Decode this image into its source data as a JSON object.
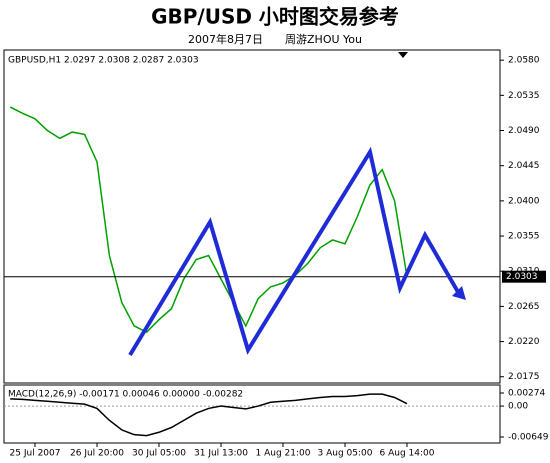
{
  "chart_data": [
    {
      "type": "line",
      "title": "GBP/USD 小时图交易参考",
      "subtitle": "2007年8月7日　　周游ZHOU You",
      "legend_text": "GBPUSD,H1 2.0297 2.0308 2.0287 2.0303",
      "categories": [
        null,
        null,
        "25 Jul 2007",
        null,
        null,
        null,
        null,
        "26 Jul 20:00",
        null,
        null,
        null,
        null,
        "30 Jul 05:00",
        null,
        null,
        null,
        null,
        "31 Jul 13:00",
        null,
        null,
        null,
        null,
        "1 Aug 21:00",
        null,
        null,
        null,
        null,
        "3 Aug 05:00",
        null,
        null,
        null,
        null,
        "6 Aug 14:00",
        null,
        null,
        null,
        null,
        null,
        null,
        null
      ],
      "series": [
        {
          "name": "GBPUSD",
          "color": "#00a000",
          "values": [
            2.052,
            2.0512,
            2.0505,
            2.049,
            2.048,
            2.0488,
            2.0485,
            2.045,
            2.033,
            2.027,
            2.024,
            2.0232,
            2.0248,
            2.0262,
            2.03,
            2.0325,
            2.033,
            2.03,
            2.027,
            2.024,
            2.0275,
            2.029,
            2.0295,
            2.0305,
            2.032,
            2.034,
            2.035,
            2.0345,
            2.038,
            2.042,
            2.044,
            2.04,
            2.0303,
            null,
            null,
            null,
            null,
            null,
            null,
            null
          ]
        }
      ],
      "ylim": [
        2.0167,
        2.0593
      ],
      "yticks": [
        {
          "value": 2.058,
          "label": "2.0580"
        },
        {
          "value": 2.0535,
          "label": "2.0535"
        },
        {
          "value": 2.049,
          "label": "2.0490"
        },
        {
          "value": 2.0445,
          "label": "2.0445"
        },
        {
          "value": 2.04,
          "label": "2.0400"
        },
        {
          "value": 2.0355,
          "label": "2.0355"
        },
        {
          "value": 2.031,
          "label": "2.0310"
        },
        {
          "value": 2.0265,
          "label": "2.0265"
        },
        {
          "value": 2.022,
          "label": "2.0220"
        },
        {
          "value": 2.0175,
          "label": "2.0175"
        }
      ],
      "last_price": {
        "value": 2.0303,
        "label": "2.0303"
      }
    },
    {
      "type": "line",
      "legend_text": "MACD(12,26,9) -0.00171 0.00046 0.00000 -0.00282",
      "series": [
        {
          "name": "MACD",
          "color": "#000000",
          "values": [
            0.0015,
            0.0014,
            0.0012,
            0.001,
            0.0008,
            0.0006,
            0.0004,
            -0.0005,
            -0.003,
            -0.005,
            -0.006,
            -0.0062,
            -0.0055,
            -0.0045,
            -0.003,
            -0.0015,
            -0.0005,
            0.0,
            -0.0003,
            -0.0006,
            0.0,
            0.0008,
            0.001,
            0.0012,
            0.0015,
            0.0018,
            0.002,
            0.002,
            0.0022,
            0.0025,
            0.0025,
            0.0018,
            0.0005,
            null,
            null,
            null,
            null,
            null,
            null,
            null
          ]
        }
      ],
      "ylim": [
        -0.00775,
        0.00442
      ],
      "yticks": [
        0.00274,
        {
          "value": 0,
          "label": "0.00"
        },
        -0.00649
      ]
    }
  ]
}
